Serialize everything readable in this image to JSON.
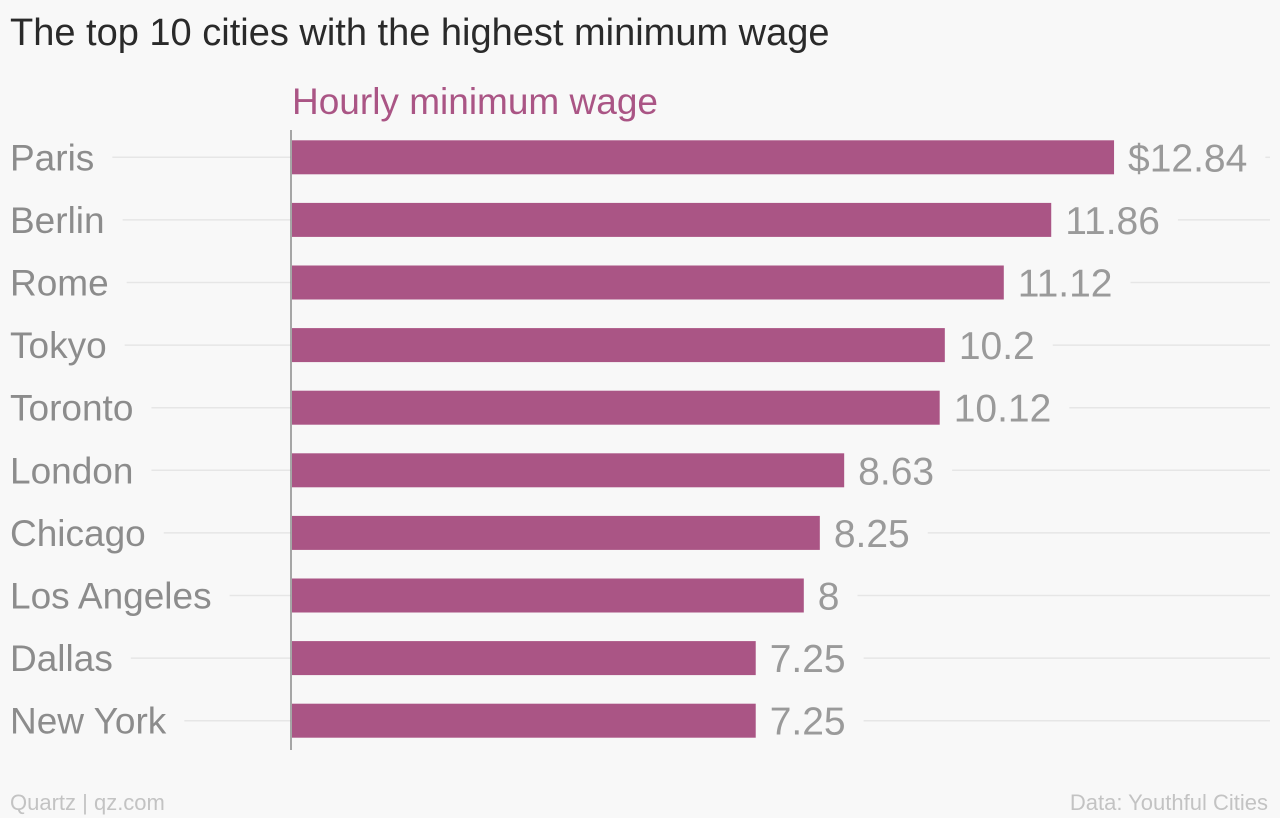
{
  "title": "The top 10 cities with the highest minimum wage",
  "footer": {
    "credit": "Quartz | qz.com",
    "source": "Data: Youthful Cities"
  },
  "colors": {
    "bar": "#aa5585",
    "series_label": "#aa5585",
    "category_label": "#8c8c8c",
    "value_label": "#9a9a9a",
    "gridline": "#e6e6e6",
    "axis": "#8a8a8a"
  },
  "chart_data": {
    "type": "bar",
    "orientation": "horizontal",
    "title": "The top 10 cities with the highest minimum wage",
    "categories": [
      "Paris",
      "Berlin",
      "Rome",
      "Tokyo",
      "Toronto",
      "London",
      "Chicago",
      "Los Angeles",
      "Dallas",
      "New York"
    ],
    "series": [
      {
        "name": "Hourly minimum wage",
        "values": [
          12.84,
          11.86,
          11.12,
          10.2,
          10.12,
          8.63,
          8.25,
          8,
          7.25,
          7.25
        ]
      }
    ],
    "value_labels": [
      "$12.84",
      "11.86",
      "11.12",
      "10.2",
      "10.12",
      "8.63",
      "8.25",
      "8",
      "7.25",
      "7.25"
    ],
    "xlim": [
      0,
      12.84
    ],
    "grid": true,
    "legend": "none"
  }
}
